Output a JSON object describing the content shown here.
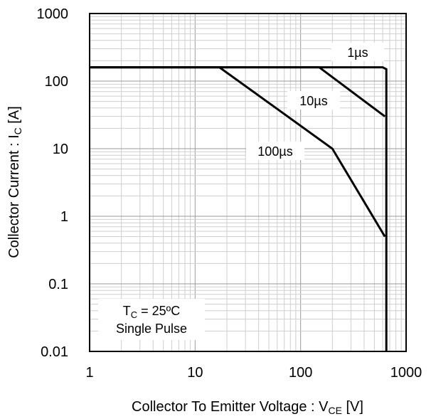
{
  "chart_data": {
    "type": "line",
    "xscale": "log",
    "yscale": "log",
    "xlim": [
      1,
      1000
    ],
    "ylim": [
      0.01,
      1000
    ],
    "grid": true,
    "x_ticks": [
      "1",
      "10",
      "100",
      "1000"
    ],
    "y_ticks": [
      "0.01",
      "0.1",
      "1",
      "10",
      "100",
      "1000"
    ],
    "xlabel": {
      "main": "Collector To Emitter Voltage : V",
      "sub": "CE",
      "unit": " [V]"
    },
    "ylabel": {
      "main": "Collector Current : I",
      "sub": "C",
      "unit": " [A]"
    },
    "annotation": {
      "line1_main": "T",
      "line1_sub": "C",
      "line1_rest": " = 25ºC",
      "line2": "Single Pulse"
    },
    "series": [
      {
        "name": "1µs",
        "x": [
          1,
          600,
          650,
          650
        ],
        "y": [
          160,
          160,
          150,
          0.01
        ]
      },
      {
        "name": "10µs",
        "x": [
          1,
          150,
          630
        ],
        "y": [
          160,
          160,
          30
        ]
      },
      {
        "name": "100µs",
        "x": [
          1,
          17,
          200,
          630
        ],
        "y": [
          160,
          160,
          10,
          0.5
        ]
      }
    ],
    "colors": {
      "line": "#000000",
      "grid_major": "#9a9a9a",
      "grid_minor": "#cfcfcf"
    }
  }
}
